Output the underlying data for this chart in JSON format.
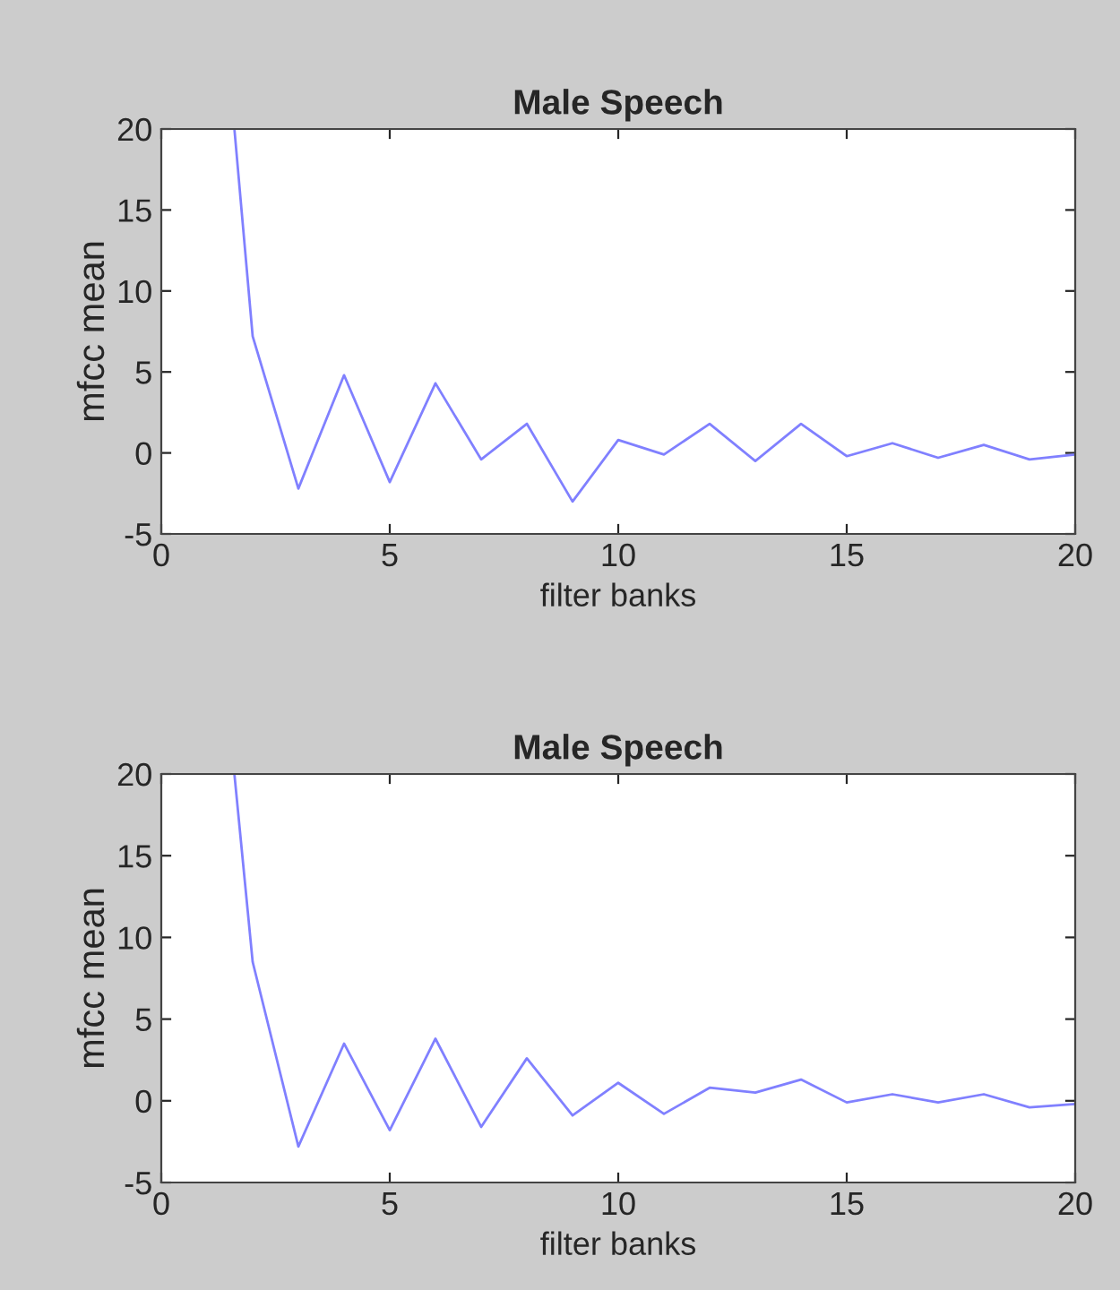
{
  "chart_data": [
    {
      "type": "line",
      "title": "Male Speech",
      "xlabel": "filter banks",
      "ylabel": "mfcc mean",
      "xlim": [
        0,
        20
      ],
      "ylim": [
        -5,
        20
      ],
      "xticks": [
        0,
        5,
        10,
        15,
        20
      ],
      "yticks": [
        -5,
        0,
        5,
        10,
        15,
        20
      ],
      "grid": false,
      "legend": false,
      "series": [
        {
          "color": "#8080ff",
          "x": [
            1.6,
            2,
            3,
            4,
            5,
            6,
            7,
            8,
            9,
            10,
            11,
            12,
            13,
            14,
            15,
            16,
            17,
            18,
            19,
            20
          ],
          "values": [
            20,
            7.2,
            -2.2,
            4.8,
            -1.8,
            4.3,
            -0.4,
            1.8,
            -3.0,
            0.8,
            -0.1,
            1.8,
            -0.5,
            1.8,
            -0.2,
            0.6,
            -0.3,
            0.5,
            -0.4,
            -0.1
          ]
        }
      ]
    },
    {
      "type": "line",
      "title": "Male Speech",
      "xlabel": "filter banks",
      "ylabel": "mfcc mean",
      "xlim": [
        0,
        20
      ],
      "ylim": [
        -5,
        20
      ],
      "xticks": [
        0,
        5,
        10,
        15,
        20
      ],
      "yticks": [
        -5,
        0,
        5,
        10,
        15,
        20
      ],
      "grid": false,
      "legend": false,
      "series": [
        {
          "color": "#8080ff",
          "x": [
            1.6,
            2,
            3,
            4,
            5,
            6,
            7,
            8,
            9,
            10,
            11,
            12,
            13,
            14,
            15,
            16,
            17,
            18,
            19,
            20
          ],
          "values": [
            20,
            8.5,
            -2.8,
            3.5,
            -1.8,
            3.8,
            -1.6,
            2.6,
            -0.9,
            1.1,
            -0.8,
            0.8,
            0.5,
            1.3,
            -0.1,
            0.4,
            -0.1,
            0.4,
            -0.4,
            -0.2
          ]
        }
      ]
    }
  ]
}
